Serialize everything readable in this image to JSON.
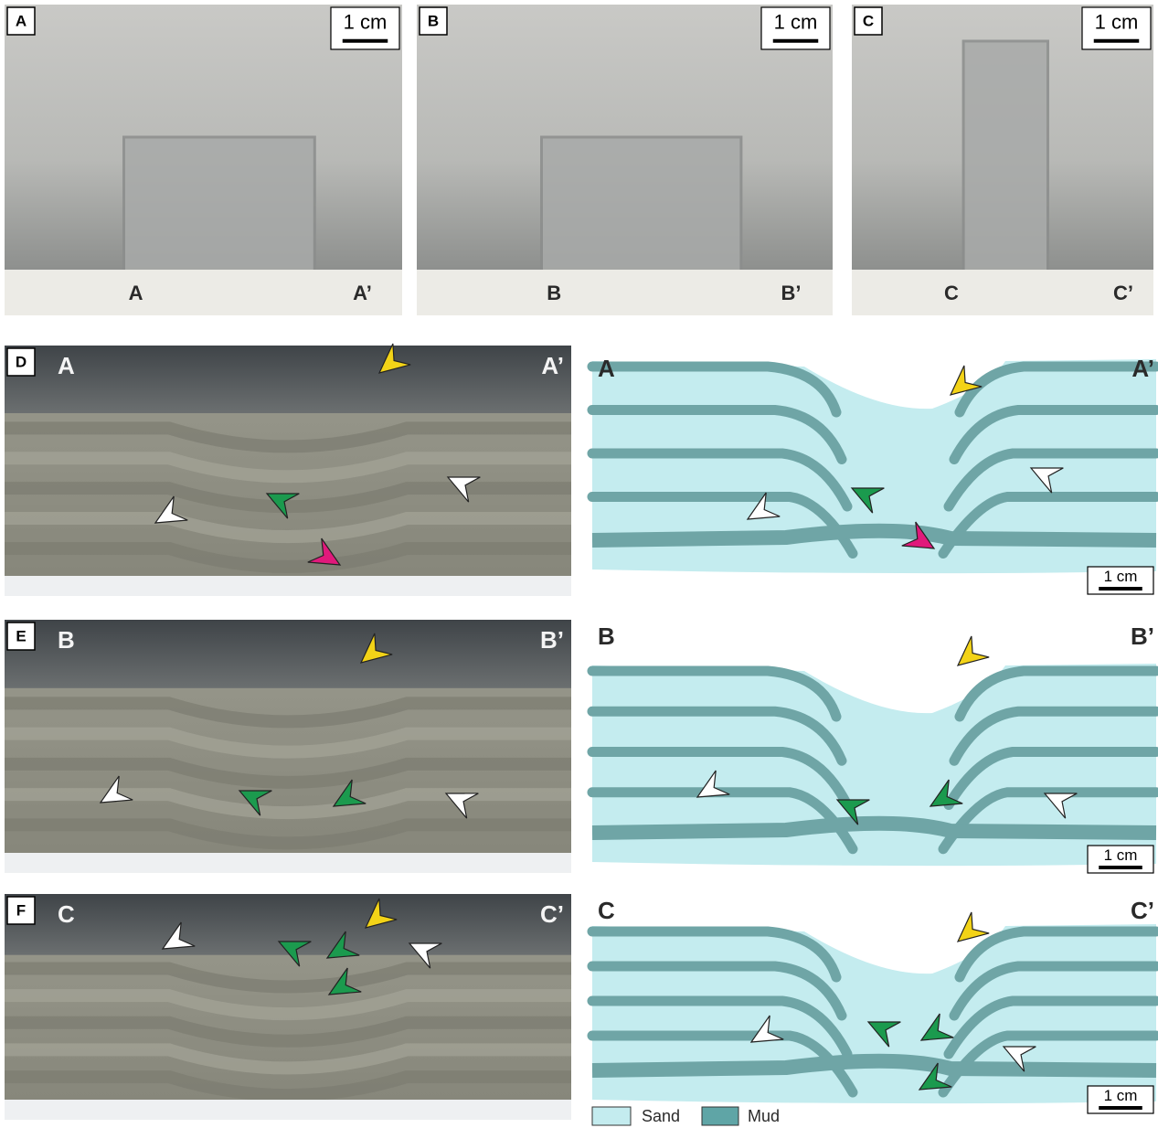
{
  "top_panels": [
    {
      "label": "A",
      "scale": "1 cm",
      "left": "A",
      "right": "A’"
    },
    {
      "label": "B",
      "scale": "1 cm",
      "left": "B",
      "right": "B’"
    },
    {
      "label": "C",
      "scale": "1 cm",
      "left": "C",
      "right": "C’"
    }
  ],
  "section_photos": [
    {
      "label": "D",
      "left": "A",
      "right": "A’"
    },
    {
      "label": "E",
      "left": "B",
      "right": "B’"
    },
    {
      "label": "F",
      "left": "C",
      "right": "C’"
    }
  ],
  "diagrams": [
    {
      "left": "A",
      "right": "A’",
      "scale": "1 cm"
    },
    {
      "left": "B",
      "right": "B’",
      "scale": "1 cm"
    },
    {
      "left": "C",
      "right": "C’",
      "scale": "1 cm"
    }
  ],
  "legend": [
    "Sand",
    "Mud"
  ]
}
